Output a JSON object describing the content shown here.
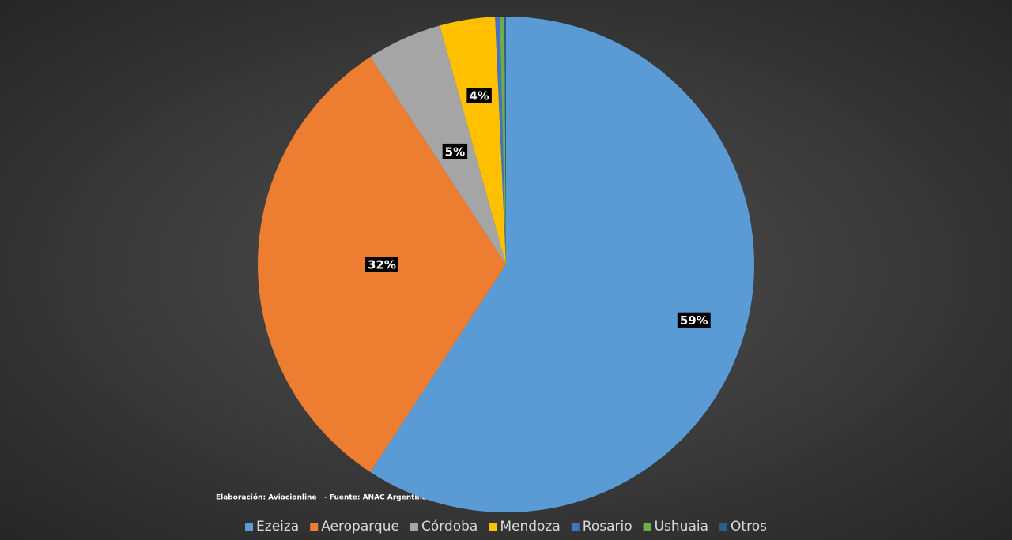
{
  "chart_data": {
    "type": "pie",
    "categories": [
      "Ezeiza",
      "Aeroparque",
      "Córdoba",
      "Mendoza",
      "Rosario",
      "Ushuaia",
      "Otros"
    ],
    "values": [
      59.2,
      31.6,
      4.9,
      3.6,
      0.3,
      0.3,
      0.1
    ],
    "value_labels": [
      "59%",
      "32%",
      "5%",
      "4%",
      null,
      null,
      null
    ],
    "colors": [
      "#5b9bd5",
      "#ed7d31",
      "#a5a5a5",
      "#ffc000",
      "#4472c4",
      "#70ad47",
      "#255e91"
    ],
    "source": "Elaboración: Aviacionline   - Fuente: ANAC Argentina",
    "legend": "bottom"
  }
}
